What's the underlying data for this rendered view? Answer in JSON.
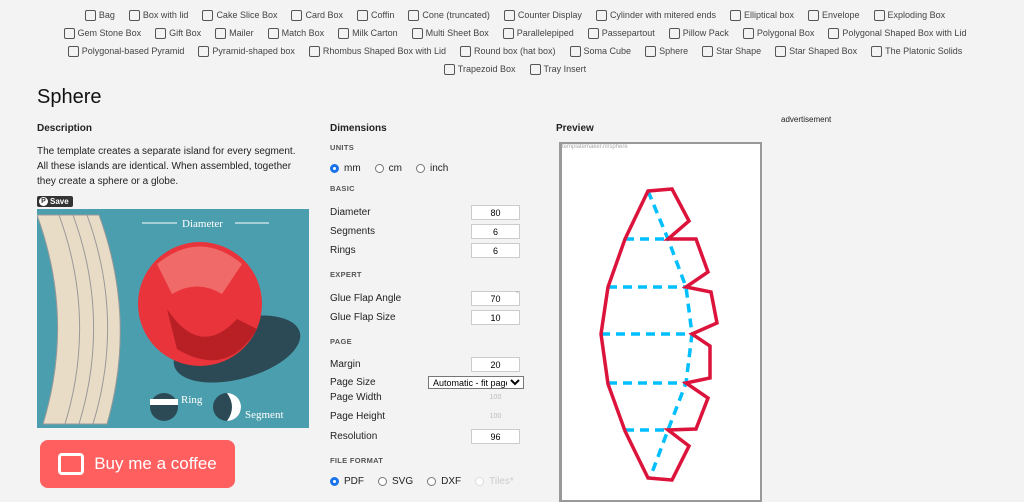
{
  "nav": [
    "Bag",
    "Box with lid",
    "Cake Slice Box",
    "Card Box",
    "Coffin",
    "Cone (truncated)",
    "Counter Display",
    "Cylinder with mitered ends",
    "Elliptical box",
    "Envelope",
    "Exploding Box",
    "Gem Stone Box",
    "Gift Box",
    "Mailer",
    "Match Box",
    "Milk Carton",
    "Multi Sheet Box",
    "Parallelepiped",
    "Passepartout",
    "Pillow Pack",
    "Polygonal Box",
    "Polygonal Shaped Box with Lid",
    "Polygonal-based Pyramid",
    "Pyramid-shaped box",
    "Rhombus Shaped Box with Lid",
    "Round box (hat box)",
    "Soma Cube",
    "Sphere",
    "Star Shape",
    "Star Shaped Box",
    "The Platonic Solids",
    "Trapezoid Box",
    "Tray Insert"
  ],
  "title": "Sphere",
  "description": {
    "heading": "Description",
    "text": "The template creates a separate island for every segment. All these islands are identical. When assembled, together they create a sphere or a globe.",
    "save": "Save",
    "illustration": {
      "diameter": "Diameter",
      "ring": "Ring",
      "segment": "Segment"
    }
  },
  "coffee": "Buy me a coffee",
  "dimensions": {
    "heading": "Dimensions",
    "units_label": "UNITS",
    "units": [
      "mm",
      "cm",
      "inch"
    ],
    "basic_label": "BASIC",
    "diameter": {
      "label": "Diameter",
      "value": "80"
    },
    "segments": {
      "label": "Segments",
      "value": "6"
    },
    "rings": {
      "label": "Rings",
      "value": "6"
    },
    "expert_label": "EXPERT",
    "glue_angle": {
      "label": "Glue Flap Angle",
      "value": "70",
      "unit": "°"
    },
    "glue_size": {
      "label": "Glue Flap Size",
      "value": "10"
    },
    "page_label": "PAGE",
    "margin": {
      "label": "Margin",
      "value": "20"
    },
    "page_size": {
      "label": "Page Size",
      "value": "Automatic - fit page"
    },
    "page_width": {
      "label": "Page Width",
      "value": "100"
    },
    "page_height": {
      "label": "Page Height",
      "value": "100"
    },
    "resolution": {
      "label": "Resolution",
      "value": "96"
    },
    "format_label": "FILE FORMAT",
    "formats": [
      "PDF",
      "SVG",
      "DXF",
      "Tiles*"
    ]
  },
  "preview": {
    "heading": "Preview",
    "watermark": "templatemaker.nl/sphere",
    "colors": {
      "cut": "#dc143c",
      "fold": "#00bfff"
    }
  },
  "ad": "advertisement"
}
